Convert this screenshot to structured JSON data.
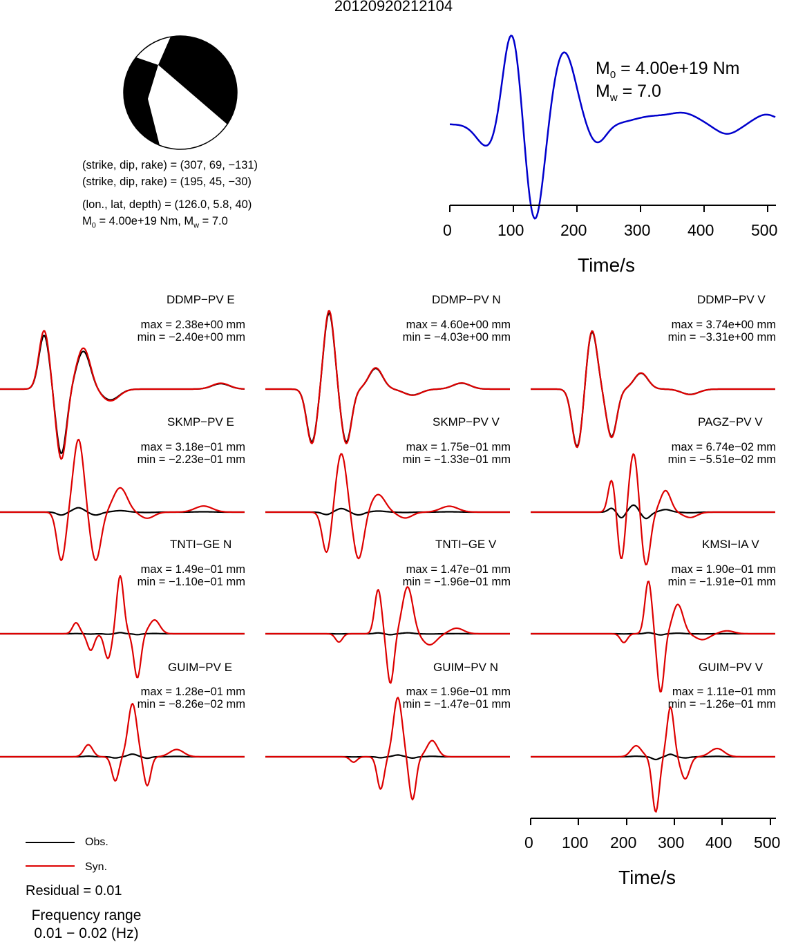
{
  "title": "20120920212104",
  "source": {
    "nodal_plane_1": "(strike, dip, rake) = (307, 69, −131)",
    "nodal_plane_2": "(strike, dip, rake) = (195, 45, −30)",
    "location": "(lon., lat, depth) = (126.0, 5.8, 40)",
    "moment_prefix": "M",
    "moment_sub": "0",
    "moment_mid": " = 4.00e+19 Nm, M",
    "mag_sub": "w",
    "mag_suffix": " = 7.0"
  },
  "stf": {
    "m0_label": "M",
    "m0_sub": "0",
    "m0_value": " = 4.00e+19 Nm",
    "mw_label": "M",
    "mw_sub": "w",
    "mw_value": " = 7.0",
    "color": "#0000cc",
    "xlabel": "Time/s",
    "ticks": [
      "0",
      "100",
      "200",
      "300",
      "400",
      "500"
    ]
  },
  "stations": [
    {
      "name": "DDMP−PV E",
      "max": "max = 2.38e+00 mm",
      "min": "min = −2.40e+00 mm"
    },
    {
      "name": "DDMP−PV N",
      "max": "max = 4.60e+00 mm",
      "min": "min = −4.03e+00 mm"
    },
    {
      "name": "DDMP−PV V",
      "max": "max = 3.74e+00 mm",
      "min": "min = −3.31e+00 mm"
    },
    {
      "name": "SKMP−PV E",
      "max": "max = 3.18e−01 mm",
      "min": "min = −2.23e−01 mm"
    },
    {
      "name": "SKMP−PV V",
      "max": "max = 1.75e−01 mm",
      "min": "min = −1.33e−01 mm"
    },
    {
      "name": "PAGZ−PV V",
      "max": "max = 6.74e−02 mm",
      "min": "min = −5.51e−02 mm"
    },
    {
      "name": "TNTI−GE N",
      "max": "max = 1.49e−01 mm",
      "min": "min = −1.10e−01 mm"
    },
    {
      "name": "TNTI−GE V",
      "max": "max = 1.47e−01 mm",
      "min": "min = −1.96e−01 mm"
    },
    {
      "name": "KMSI−IA V",
      "max": "max = 1.90e−01 mm",
      "min": "min = −1.91e−01 mm"
    },
    {
      "name": "GUIM−PV E",
      "max": "max = 1.28e−01 mm",
      "min": "min = −8.26e−02 mm"
    },
    {
      "name": "GUIM−PV N",
      "max": "max = 1.96e−01 mm",
      "min": "min = −1.47e−01 mm"
    },
    {
      "name": "GUIM−PV V",
      "max": "max = 1.11e−01 mm",
      "min": "min = −1.26e−01 mm"
    }
  ],
  "waveform_axis": {
    "xlabel": "Time/s",
    "ticks": [
      "0",
      "100",
      "200",
      "300",
      "400",
      "500"
    ]
  },
  "legend": {
    "obs_label": "Obs.",
    "syn_label": "Syn.",
    "obs_color": "#000000",
    "syn_color": "#dd0000"
  },
  "residual": "Residual = 0.01",
  "frequency_line1": "Frequency range",
  "frequency_line2": "0.01 − 0.02 (Hz)",
  "chart_data": {
    "type": "line",
    "title": "20120920212104",
    "xlabel": "Time/s",
    "xlim": [
      0,
      510
    ],
    "series": [
      {
        "name": "Obs."
      },
      {
        "name": "Syn."
      }
    ]
  }
}
